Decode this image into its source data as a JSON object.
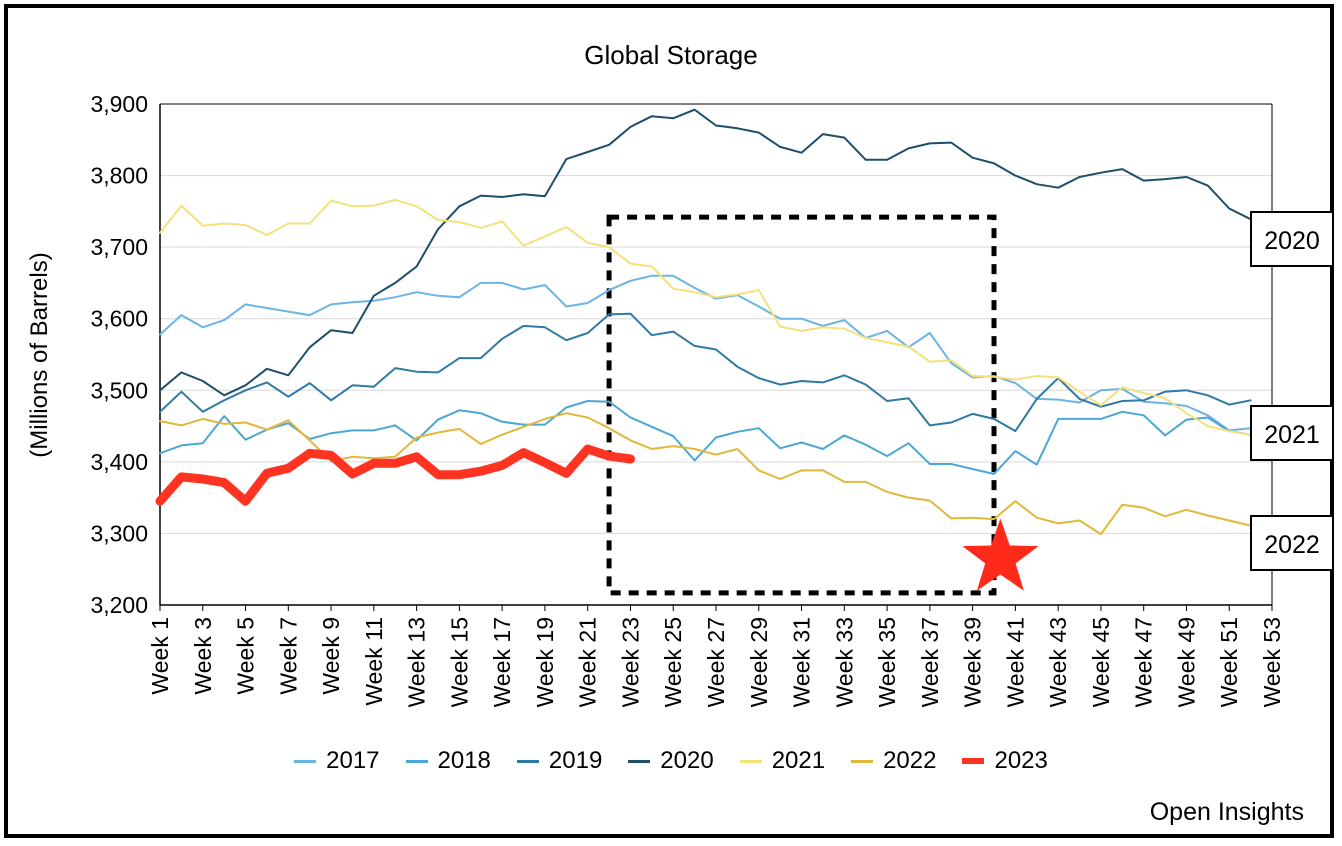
{
  "chart_data": {
    "type": "line",
    "title": "Global Storage",
    "ylabel": "(Millions of Barrels)",
    "xlabel": "",
    "ylim": [
      3200,
      3900
    ],
    "yticks": [
      "3,200",
      "3,300",
      "3,400",
      "3,500",
      "3,600",
      "3,700",
      "3,800",
      "3,900"
    ],
    "ytick_values": [
      3200,
      3300,
      3400,
      3500,
      3600,
      3700,
      3800,
      3900
    ],
    "xticks": [
      "Week 1",
      "Week 3",
      "Week 5",
      "Week 7",
      "Week 9",
      "Week 11",
      "Week 13",
      "Week 15",
      "Week 17",
      "Week 19",
      "Week 21",
      "Week 23",
      "Week 25",
      "Week 27",
      "Week 29",
      "Week 31",
      "Week 33",
      "Week 35",
      "Week 37",
      "Week 39",
      "Week 41",
      "Week 43",
      "Week 45",
      "Week 47",
      "Week 49",
      "Week 51",
      "Week 53"
    ],
    "xlim": [
      1,
      53
    ],
    "grid": "horizontal",
    "legend_position": "bottom",
    "series": [
      {
        "name": "2017",
        "color": "#6cb4e4",
        "width": 2,
        "values": [
          3578,
          3605,
          3588,
          3598,
          3620,
          3615,
          3610,
          3605,
          3620,
          3623,
          3625,
          3630,
          3637,
          3632,
          3630,
          3650,
          3650,
          3641,
          3647,
          3617,
          3622,
          3640,
          3653,
          3660,
          3660,
          3643,
          3628,
          3633,
          3617,
          3600,
          3600,
          3590,
          3598,
          3573,
          3583,
          3560,
          3580,
          3538,
          3518,
          3520,
          3510,
          3488,
          3487,
          3483,
          3500,
          3502,
          3484,
          3482,
          3478,
          3465,
          3444,
          3447
        ]
      },
      {
        "name": "2018",
        "color": "#4ca6d6",
        "width": 2,
        "values": [
          3412,
          3423,
          3426,
          3464,
          3431,
          3445,
          3454,
          3432,
          3440,
          3444,
          3444,
          3451,
          3430,
          3459,
          3472,
          3468,
          3456,
          3452,
          3452,
          3476,
          3485,
          3484,
          3462,
          3449,
          3436,
          3402,
          3434,
          3442,
          3447,
          3419,
          3427,
          3418,
          3437,
          3424,
          3408,
          3426,
          3397,
          3397,
          3390,
          3383,
          3415,
          3396,
          3460,
          3460,
          3460,
          3470,
          3465,
          3437,
          3459,
          3462,
          3443,
          3438
        ]
      },
      {
        "name": "2019",
        "color": "#2f7aa3",
        "width": 2,
        "values": [
          3470,
          3498,
          3470,
          3486,
          3500,
          3511,
          3491,
          3510,
          3486,
          3507,
          3505,
          3531,
          3526,
          3525,
          3545,
          3545,
          3572,
          3590,
          3588,
          3570,
          3580,
          3606,
          3607,
          3577,
          3582,
          3562,
          3557,
          3533,
          3517,
          3508,
          3513,
          3511,
          3521,
          3508,
          3485,
          3489,
          3451,
          3455,
          3467,
          3460,
          3443,
          3488,
          3517,
          3488,
          3477,
          3485,
          3486,
          3498,
          3500,
          3493,
          3480,
          3486
        ]
      },
      {
        "name": "2020",
        "color": "#1e4e6a",
        "width": 2,
        "values": [
          3500,
          3525,
          3513,
          3493,
          3507,
          3530,
          3521,
          3560,
          3584,
          3580,
          3632,
          3650,
          3673,
          3725,
          3757,
          3772,
          3770,
          3774,
          3771,
          3823,
          3833,
          3843,
          3868,
          3883,
          3880,
          3892,
          3870,
          3866,
          3860,
          3840,
          3832,
          3858,
          3853,
          3822,
          3822,
          3838,
          3845,
          3846,
          3825,
          3817,
          3800,
          3788,
          3783,
          3798,
          3804,
          3809,
          3793,
          3795,
          3798,
          3786,
          3754,
          3739
        ]
      },
      {
        "name": "2021",
        "color": "#f5e07a",
        "width": 2,
        "values": [
          3720,
          3758,
          3730,
          3733,
          3731,
          3717,
          3733,
          3733,
          3765,
          3757,
          3758,
          3766,
          3757,
          3738,
          3735,
          3727,
          3736,
          3702,
          3715,
          3728,
          3706,
          3700,
          3677,
          3673,
          3642,
          3637,
          3630,
          3634,
          3640,
          3589,
          3583,
          3588,
          3586,
          3573,
          3567,
          3561,
          3540,
          3542,
          3520,
          3519,
          3515,
          3520,
          3518,
          3498,
          3479,
          3504,
          3496,
          3489,
          3468,
          3450,
          3443,
          3438
        ]
      },
      {
        "name": "2022",
        "color": "#e0b83a",
        "width": 2,
        "values": [
          3457,
          3451,
          3460,
          3453,
          3455,
          3445,
          3458,
          3430,
          3401,
          3407,
          3405,
          3407,
          3434,
          3441,
          3446,
          3425,
          3438,
          3449,
          3460,
          3468,
          3462,
          3447,
          3430,
          3418,
          3422,
          3418,
          3410,
          3418,
          3388,
          3376,
          3388,
          3388,
          3372,
          3372,
          3358,
          3350,
          3346,
          3321,
          3322,
          3320,
          3345,
          3322,
          3314,
          3318,
          3299,
          3340,
          3336,
          3324,
          3333,
          3325,
          3318,
          3311
        ]
      },
      {
        "name": "2023",
        "color": "#ff3322",
        "width": 9,
        "values": [
          3345,
          3379,
          3376,
          3371,
          3345,
          3384,
          3391,
          3412,
          3409,
          3383,
          3398,
          3398,
          3407,
          3382,
          3382,
          3387,
          3395,
          3413,
          3399,
          3384,
          3418,
          3408,
          3404
        ]
      }
    ],
    "annotations": {
      "end_labels": [
        "2020",
        "2021",
        "2022"
      ],
      "highlight_box": {
        "from_week": 22,
        "to_week": 40,
        "from_value": 3217,
        "to_value": 3742
      },
      "star": {
        "week": 40.3,
        "value": 3265,
        "color": "#ff2a1a"
      }
    }
  },
  "source": "Open Insights"
}
